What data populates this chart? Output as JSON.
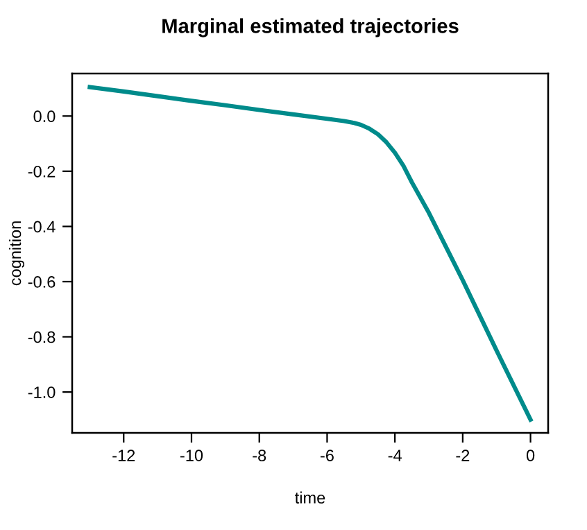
{
  "chart_data": {
    "type": "line",
    "title": "Marginal estimated trajectories",
    "xlabel": "time",
    "ylabel": "cognition",
    "series": [
      {
        "color": "#008b8b",
        "x": [
          -13,
          -12,
          -11,
          -10,
          -9,
          -8,
          -7,
          -6,
          -5.5,
          -5.2,
          -5,
          -4.75,
          -4.5,
          -4.25,
          -4,
          -3.75,
          -3.5,
          -3,
          -2,
          -1,
          0
        ],
        "values": [
          0.105,
          0.089,
          0.072,
          0.055,
          0.039,
          0.022,
          0.006,
          -0.01,
          -0.018,
          -0.025,
          -0.032,
          -0.046,
          -0.066,
          -0.095,
          -0.133,
          -0.18,
          -0.24,
          -0.35,
          -0.595,
          -0.85,
          -1.1
        ]
      }
    ],
    "xlim": [
      -13.52,
      0.52
    ],
    "ylim": [
      -1.148,
      0.154
    ],
    "xticks": [
      -12,
      -10,
      -8,
      -6,
      -4,
      -2,
      0
    ],
    "yticks": [
      {
        "value": 0,
        "label": "0.0"
      },
      {
        "value": -0.2,
        "label": "-0.2"
      },
      {
        "value": -0.4,
        "label": "-0.4"
      },
      {
        "value": -0.6,
        "label": "-0.6"
      },
      {
        "value": -0.8,
        "label": "-0.8"
      },
      {
        "value": -1.0,
        "label": "-1.0"
      }
    ],
    "grid": false,
    "legend": false,
    "marker": "none",
    "line_style": "solid"
  }
}
